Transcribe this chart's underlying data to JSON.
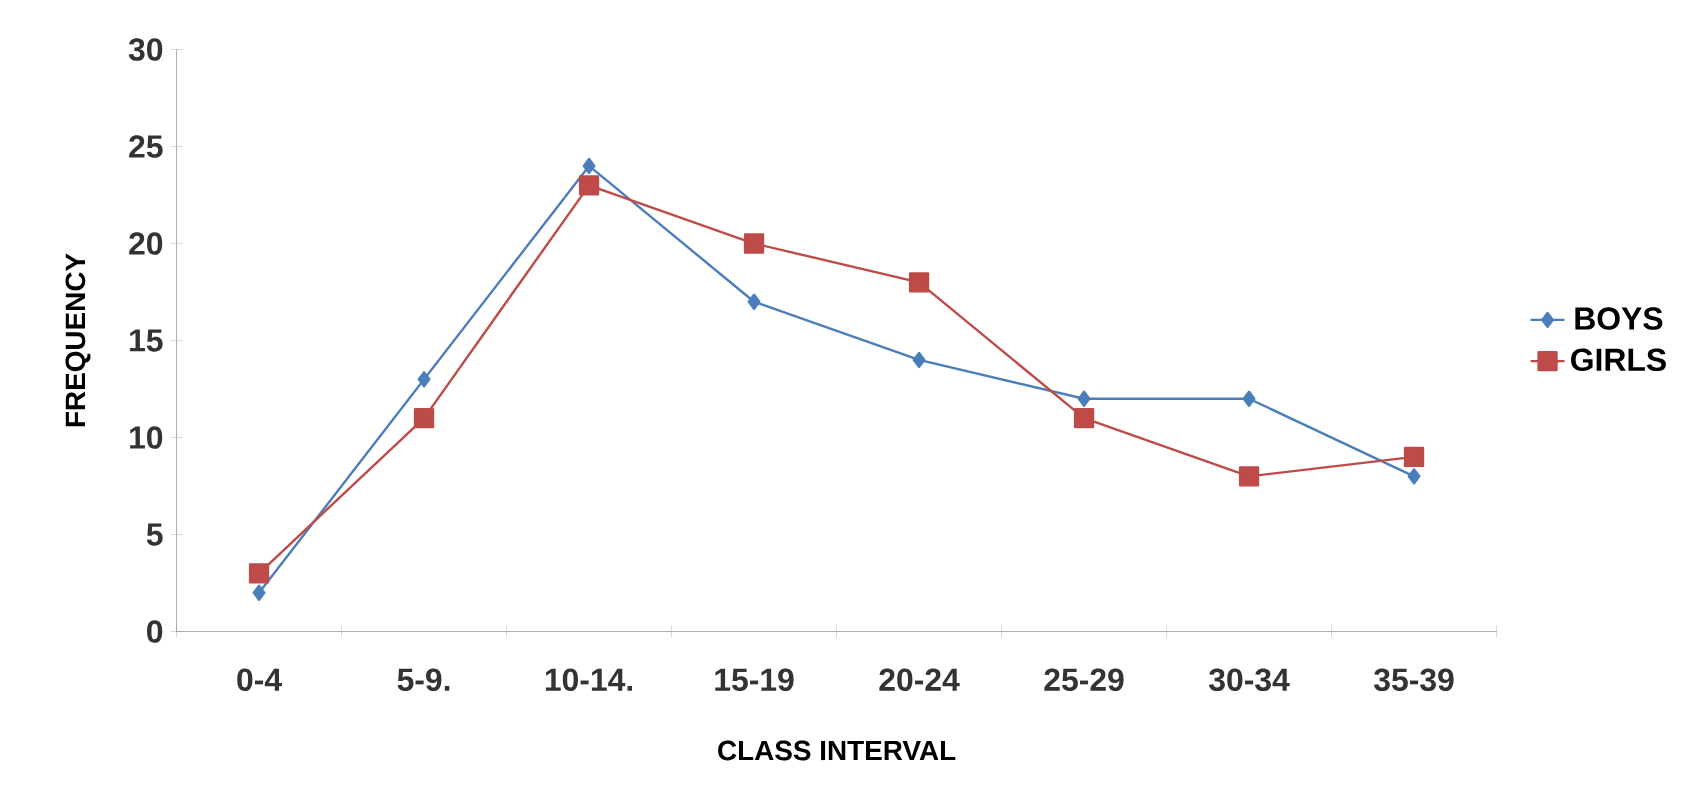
{
  "chart_data": {
    "type": "line",
    "xlabel": "CLASS INTERVAL",
    "ylabel": "FREQUENCY",
    "categories": [
      "0-4",
      "5-9.",
      "10-14.",
      "15-19",
      "20-24",
      "25-29",
      "30-34",
      "35-39"
    ],
    "series": [
      {
        "name": "BOYS",
        "color": "#4a7ebb",
        "marker": "diamond",
        "values": [
          2,
          13,
          24,
          17,
          14,
          12,
          12,
          8
        ]
      },
      {
        "name": "GIRLS",
        "color": "#be4b48",
        "marker": "square",
        "values": [
          3,
          11,
          23,
          20,
          18,
          11,
          8,
          9
        ]
      }
    ],
    "ylim": [
      0,
      30
    ],
    "yticks": [
      0,
      5,
      10,
      15,
      20,
      25,
      30
    ],
    "grid": false,
    "legend": "right"
  }
}
